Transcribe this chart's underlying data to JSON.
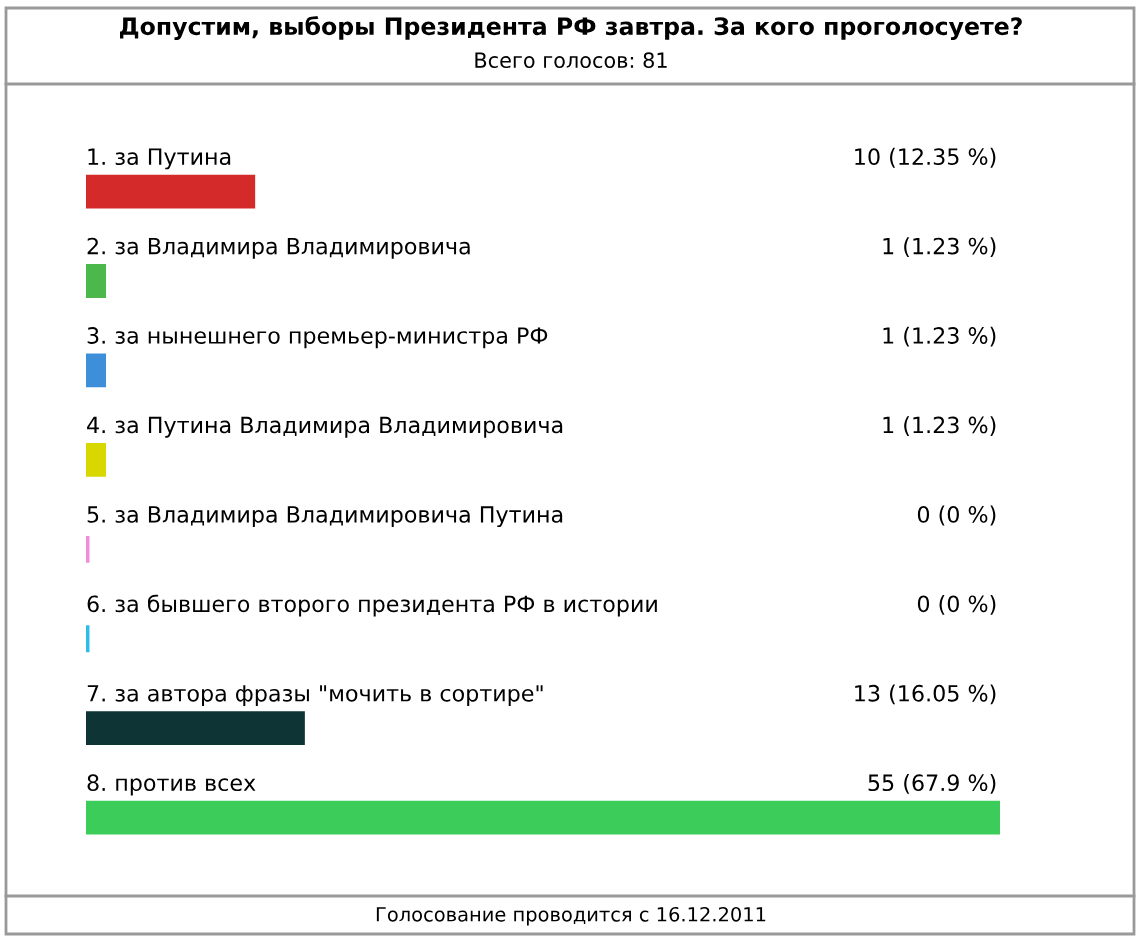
{
  "chart_data": {
    "type": "bar",
    "orientation": "horizontal",
    "title": "Допустим, выборы Президента РФ завтра. За кого проголосуете?",
    "subtitle": "Всего голосов: 81",
    "categories": [
      "1. за Путина",
      "2. за Владимира Владимировича",
      "3. за нынешнего премьер-министра РФ",
      "4. за Путина Владимира Владимировича",
      "5. за Владимира Владимировича Путина",
      "6. за бывшего второго президента РФ в истории",
      "7. за автора фразы \"мочить в сортире\"",
      "8. против всех"
    ],
    "values": [
      10,
      1,
      1,
      1,
      0,
      0,
      13,
      55
    ],
    "colors": [
      "#d42a2a",
      "#4cb84c",
      "#3c8fd8",
      "#d8d800",
      "#f08cd8",
      "#30bce8",
      "#0e3436",
      "#3ccc5a"
    ],
    "value_labels": [
      "10 (12.35 %)",
      "1 (1.23 %)",
      "1 (1.23 %)",
      "1 (1.23 %)",
      "0 (0 %)",
      "0 (0 %)",
      "13 (16.05 %)",
      "55 (67.9 %)"
    ],
    "annotations": [
      "Голосование проводится с 16.12.2011"
    ]
  }
}
